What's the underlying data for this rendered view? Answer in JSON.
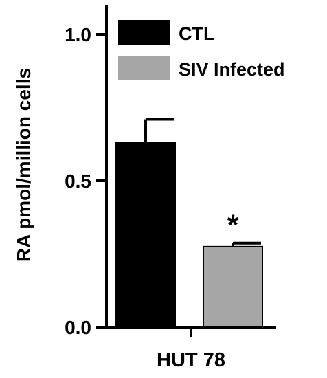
{
  "chart_data": {
    "type": "bar",
    "ylabel": "RA pmol/million cells",
    "xlabel": "",
    "categories": [
      "HUT 78"
    ],
    "ylim": [
      0,
      1.1
    ],
    "yticks": [
      {
        "value": 0.0,
        "label": "0.0"
      },
      {
        "value": 0.5,
        "label": "0.5"
      },
      {
        "value": 1.0,
        "label": "1.0"
      }
    ],
    "grid": false,
    "legend_position": "top-right",
    "series": [
      {
        "name": "CTL",
        "values": [
          0.63
        ],
        "error": [
          0.08
        ],
        "color": "#000000"
      },
      {
        "name": "SIV Infected",
        "values": [
          0.275
        ],
        "error": [
          0.012
        ],
        "color": "#a6a6a6",
        "annotation": "*"
      }
    ]
  }
}
